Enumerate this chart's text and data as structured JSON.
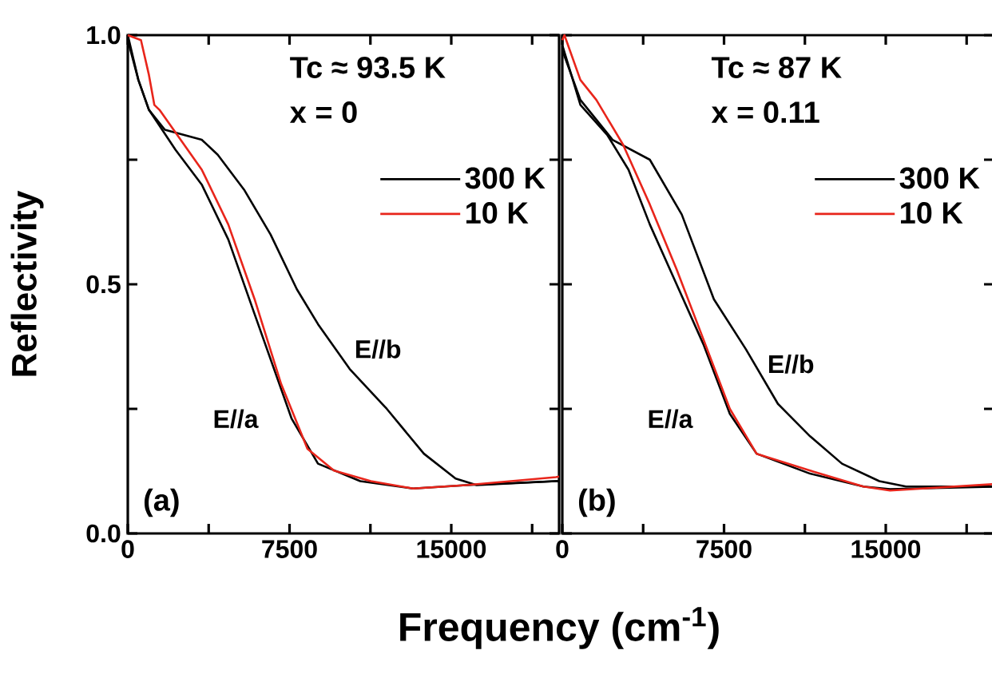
{
  "chart_data": [
    {
      "type": "line",
      "ylabel": "Reflectivity",
      "xlabel": "Frequency (cm$^{-1}$)",
      "xlim": [
        0,
        20000
      ],
      "ylim": [
        0,
        1
      ],
      "xticks": [
        0,
        {
          "value": 3750,
          "label": null
        },
        7500,
        {
          "value": 11250,
          "label": null
        },
        15000,
        {
          "value": 18750,
          "label": null
        }
      ],
      "yticks": [
        {
          "value": 0,
          "label": "0.0"
        },
        {
          "value": 0.25,
          "label": null
        },
        {
          "value": 0.5,
          "label": "0.5"
        },
        {
          "value": 0.75,
          "label": null
        },
        {
          "value": 1,
          "label": "1.0"
        }
      ],
      "legend": "top right",
      "annotations": [
        "Tc ≈ 93.5 K",
        "x = 0",
        "(a)",
        "E//a",
        "E//b"
      ],
      "series": [
        {
          "name": "300 K",
          "color": "#000000",
          "x": [
            0,
            490,
            980,
            1720,
            3430,
            4170,
            5390,
            6620,
            7840,
            8820,
            10290,
            12010,
            13730,
            15200,
            16180,
            19850,
            20000
          ],
          "values": [
            1.0,
            0.91,
            0.85,
            0.81,
            0.79,
            0.76,
            0.69,
            0.6,
            0.49,
            0.42,
            0.33,
            0.25,
            0.16,
            0.11,
            0.097,
            0.105,
            0.105
          ]
        },
        {
          "color": "#000000",
          "x": [
            0,
            490,
            980,
            2210,
            3430,
            4660,
            5880,
            7600,
            8820,
            10780,
            13230,
            15690,
            19850,
            20000
          ],
          "values": [
            0.99,
            0.91,
            0.85,
            0.77,
            0.7,
            0.59,
            0.44,
            0.23,
            0.14,
            0.105,
            0.09,
            0.097,
            0.105,
            0.105
          ]
        },
        {
          "name": "10 K",
          "color": "#e8251b",
          "x": [
            0,
            610,
            980,
            1230,
            1470,
            3430,
            4660,
            5880,
            7110,
            8330,
            9560,
            11270,
            13230,
            15690,
            19850,
            20000
          ],
          "values": [
            1.0,
            0.99,
            0.92,
            0.86,
            0.85,
            0.73,
            0.62,
            0.47,
            0.3,
            0.17,
            0.126,
            0.105,
            0.09,
            0.097,
            0.113,
            0.114
          ]
        }
      ]
    },
    {
      "type": "line",
      "xlim": [
        0,
        20000
      ],
      "ylim": [
        0,
        1
      ],
      "tick_labels": "x",
      "xticks": [
        0,
        {
          "value": 3750,
          "label": null
        },
        7500,
        {
          "value": 11250,
          "label": null
        },
        15000,
        {
          "value": 18750,
          "label": null
        }
      ],
      "yticks": [
        0,
        0.25,
        0.5,
        0.75,
        1
      ],
      "legend": "top right",
      "annotations": [
        "Tc ≈ 87 K",
        "x = 0.11",
        "(b)",
        "E//a",
        "E//b"
      ],
      "series": [
        {
          "name": "300 K",
          "color": "#000000",
          "x": [
            0,
            840,
            2330,
            4060,
            5540,
            7030,
            8510,
            10000,
            11490,
            12970,
            14700,
            15940,
            20000
          ],
          "values": [
            0.97,
            0.87,
            0.79,
            0.75,
            0.64,
            0.47,
            0.37,
            0.26,
            0.195,
            0.14,
            0.105,
            0.094,
            0.094
          ]
        },
        {
          "color": "#000000",
          "x": [
            0,
            840,
            2080,
            3070,
            4060,
            5300,
            6540,
            7770,
            9010,
            11490,
            13960,
            15200,
            20000
          ],
          "values": [
            0.98,
            0.86,
            0.8,
            0.73,
            0.62,
            0.5,
            0.38,
            0.24,
            0.16,
            0.12,
            0.094,
            0.089,
            0.094
          ]
        },
        {
          "name": "10 K",
          "color": "#e8251b",
          "x": [
            0,
            100,
            840,
            1580,
            2820,
            4060,
            5300,
            6540,
            7770,
            9010,
            11490,
            13960,
            15200,
            20000
          ],
          "values": [
            0.99,
            1.0,
            0.91,
            0.87,
            0.78,
            0.66,
            0.53,
            0.39,
            0.25,
            0.16,
            0.126,
            0.094,
            0.086,
            0.099
          ]
        }
      ]
    }
  ]
}
